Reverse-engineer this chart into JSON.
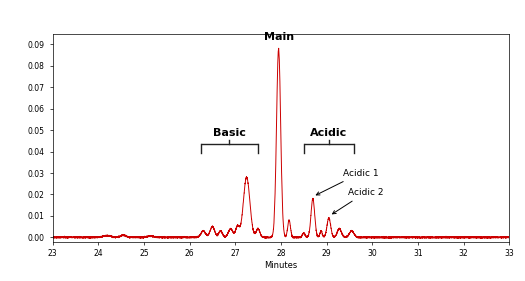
{
  "xlim": [
    23,
    33
  ],
  "ylim": [
    -0.002,
    0.095
  ],
  "yticks": [
    0.0,
    0.01,
    0.02,
    0.03,
    0.04,
    0.05,
    0.06,
    0.07,
    0.08,
    0.09
  ],
  "xticks": [
    23,
    24,
    25,
    26,
    27,
    28,
    29,
    30,
    31,
    32,
    33
  ],
  "xlabel": "Minutes",
  "line_color": "#cc0000",
  "background_color": "#ffffff",
  "main_label": "Main",
  "basic_label": "Basic",
  "acidic_label": "Acidic",
  "acidic1_label": "Acidic 1",
  "acidic2_label": "Acidic 2",
  "tick_fontsize": 5.5,
  "label_fontsize": 8,
  "annotation_fontsize": 6.5
}
